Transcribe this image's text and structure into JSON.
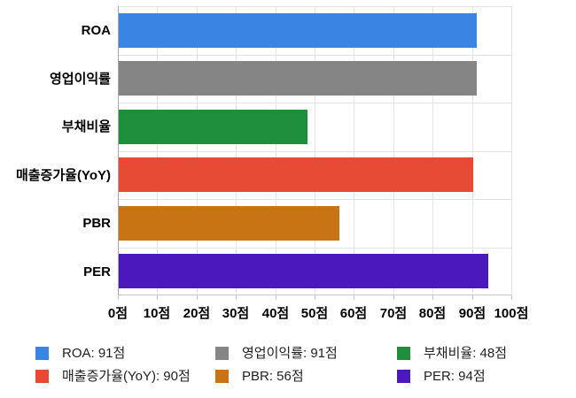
{
  "chart_data": {
    "type": "bar",
    "orientation": "horizontal",
    "title": "",
    "xlabel": "",
    "ylabel": "",
    "unit": "점",
    "categories": [
      "ROA",
      "영업이익률",
      "부채비율",
      "매출증가율(YoY)",
      "PBR",
      "PER"
    ],
    "values": [
      91,
      91,
      48,
      90,
      56,
      94
    ],
    "colors": [
      "#3a84e4",
      "#858585",
      "#1e8f3a",
      "#e84b35",
      "#c87414",
      "#4b18be"
    ],
    "xlim": [
      0,
      100
    ],
    "xticks": [
      0,
      10,
      20,
      30,
      40,
      50,
      60,
      70,
      80,
      90,
      100
    ],
    "xtick_labels": [
      "0점",
      "10점",
      "20점",
      "30점",
      "40점",
      "50점",
      "60점",
      "70점",
      "80점",
      "90점",
      "100점"
    ],
    "grid": true,
    "legend_position": "bottom",
    "legend": {
      "items": [
        {
          "label": "ROA: 91점",
          "color": "#3a84e4"
        },
        {
          "label": "영업이익률: 91점",
          "color": "#858585"
        },
        {
          "label": "부채비율: 48점",
          "color": "#1e8f3a"
        },
        {
          "label": "매출증가율(YoY): 90점",
          "color": "#e84b35"
        },
        {
          "label": "PBR: 56점",
          "color": "#c87414"
        },
        {
          "label": "PER: 94점",
          "color": "#4b18be"
        }
      ]
    }
  }
}
